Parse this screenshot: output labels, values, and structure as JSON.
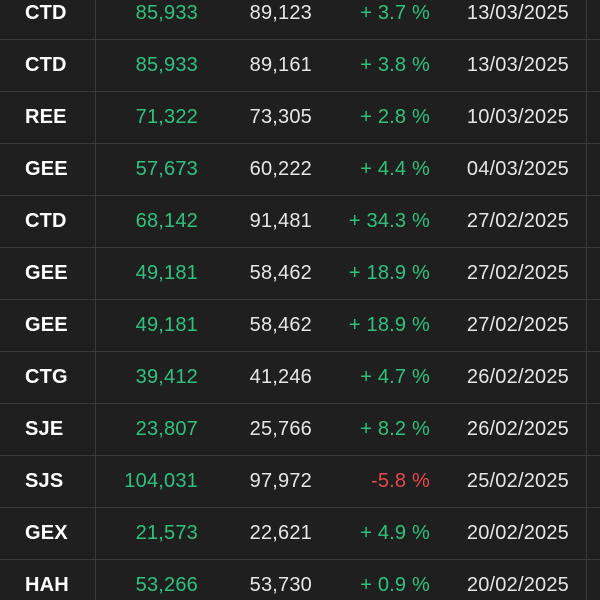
{
  "colors": {
    "background": "#1f1f1f",
    "grid": "#3a3a3a",
    "positive": "#2ec27e",
    "negative": "#e5484d",
    "text": "#e6e6e6"
  },
  "rows": [
    {
      "symbol": "CTD",
      "buy_price": "85,933",
      "current_price": "89,123",
      "change": "+ 3.7 %",
      "direction": "up",
      "date": "13/03/2025"
    },
    {
      "symbol": "CTD",
      "buy_price": "85,933",
      "current_price": "89,161",
      "change": "+ 3.8 %",
      "direction": "up",
      "date": "13/03/2025"
    },
    {
      "symbol": "REE",
      "buy_price": "71,322",
      "current_price": "73,305",
      "change": "+ 2.8 %",
      "direction": "up",
      "date": "10/03/2025"
    },
    {
      "symbol": "GEE",
      "buy_price": "57,673",
      "current_price": "60,222",
      "change": "+ 4.4 %",
      "direction": "up",
      "date": "04/03/2025"
    },
    {
      "symbol": "CTD",
      "buy_price": "68,142",
      "current_price": "91,481",
      "change": "+ 34.3 %",
      "direction": "up",
      "date": "27/02/2025"
    },
    {
      "symbol": "GEE",
      "buy_price": "49,181",
      "current_price": "58,462",
      "change": "+ 18.9 %",
      "direction": "up",
      "date": "27/02/2025"
    },
    {
      "symbol": "GEE",
      "buy_price": "49,181",
      "current_price": "58,462",
      "change": "+ 18.9 %",
      "direction": "up",
      "date": "27/02/2025"
    },
    {
      "symbol": "CTG",
      "buy_price": "39,412",
      "current_price": "41,246",
      "change": "+ 4.7 %",
      "direction": "up",
      "date": "26/02/2025"
    },
    {
      "symbol": "SJE",
      "buy_price": "23,807",
      "current_price": "25,766",
      "change": "+ 8.2 %",
      "direction": "up",
      "date": "26/02/2025"
    },
    {
      "symbol": "SJS",
      "buy_price": "104,031",
      "current_price": "97,972",
      "change": "-5.8 %",
      "direction": "down",
      "date": "25/02/2025"
    },
    {
      "symbol": "GEX",
      "buy_price": "21,573",
      "current_price": "22,621",
      "change": "+ 4.9 %",
      "direction": "up",
      "date": "20/02/2025"
    },
    {
      "symbol": "HAH",
      "buy_price": "53,266",
      "current_price": "53,730",
      "change": "+ 0.9 %",
      "direction": "up",
      "date": "20/02/2025"
    }
  ]
}
